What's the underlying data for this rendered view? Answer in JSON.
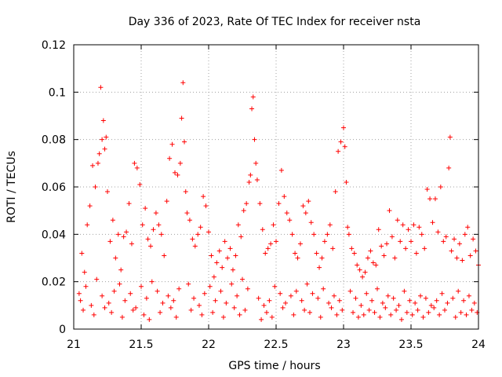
{
  "chart_data": {
    "type": "scatter",
    "title": "Day 336 of 2023, Rate Of TEC Index for receiver nsta",
    "xlabel": "GPS time / hours",
    "ylabel": "ROTI / TECUs",
    "xlim": [
      21,
      24
    ],
    "ylim": [
      0,
      0.12
    ],
    "x_ticks": [
      "21",
      "21.5",
      "22",
      "22.5",
      "23",
      "23.5",
      "24"
    ],
    "y_ticks": [
      "0",
      "0.02",
      "0.04",
      "0.06",
      "0.08",
      "0.1",
      "0.12"
    ],
    "grid": true,
    "marker": "+",
    "color": "#ff0000",
    "series": [
      {
        "name": "ROTI",
        "x": [
          21.04,
          21.06,
          21.08,
          21.1,
          21.12,
          21.14,
          21.16,
          21.18,
          21.19,
          21.2,
          21.21,
          21.22,
          21.23,
          21.24,
          21.25,
          21.27,
          21.29,
          21.31,
          21.33,
          21.35,
          21.37,
          21.39,
          21.41,
          21.43,
          21.45,
          21.47,
          21.49,
          21.51,
          21.53,
          21.55,
          21.57,
          21.59,
          21.61,
          21.63,
          21.65,
          21.67,
          21.69,
          21.71,
          21.73,
          21.75,
          21.77,
          21.79,
          21.8,
          21.81,
          21.82,
          21.83,
          21.84,
          21.86,
          21.88,
          21.9,
          21.92,
          21.94,
          21.96,
          21.98,
          22.0,
          22.02,
          22.04,
          22.06,
          22.08,
          22.1,
          22.12,
          22.14,
          22.16,
          22.18,
          22.2,
          22.22,
          22.24,
          22.26,
          22.28,
          22.3,
          22.31,
          22.32,
          22.33,
          22.34,
          22.35,
          22.36,
          22.38,
          22.4,
          22.42,
          22.44,
          22.46,
          22.48,
          22.5,
          22.52,
          22.54,
          22.56,
          22.58,
          22.6,
          22.62,
          22.64,
          22.66,
          22.68,
          22.7,
          22.72,
          22.74,
          22.76,
          22.78,
          22.8,
          22.82,
          22.84,
          22.86,
          22.88,
          22.9,
          22.92,
          22.94,
          22.96,
          22.98,
          23.0,
          23.01,
          23.02,
          23.03,
          23.04,
          23.06,
          23.08,
          23.1,
          23.12,
          23.14,
          23.16,
          23.18,
          23.2,
          23.22,
          23.24,
          23.26,
          23.28,
          23.3,
          23.32,
          23.34,
          23.36,
          23.38,
          23.4,
          23.42,
          23.44,
          23.46,
          23.48,
          23.5,
          23.52,
          23.54,
          23.56,
          23.58,
          23.6,
          23.62,
          23.64,
          23.66,
          23.68,
          23.7,
          23.72,
          23.74,
          23.76,
          23.78,
          23.79,
          23.8,
          23.82,
          23.84,
          23.86,
          23.88,
          23.9,
          23.92,
          23.94,
          23.96,
          23.98,
          24.0,
          21.05,
          21.09,
          21.13,
          21.17,
          21.21,
          21.26,
          21.3,
          21.34,
          21.38,
          21.42,
          21.46,
          21.5,
          21.54,
          21.58,
          21.62,
          21.66,
          21.7,
          21.74,
          21.78,
          21.85,
          21.89,
          21.93,
          21.97,
          22.01,
          22.05,
          22.09,
          22.13,
          22.17,
          22.21,
          22.25,
          22.29,
          22.37,
          22.41,
          22.45,
          22.49,
          22.53,
          22.57,
          22.61,
          22.65,
          22.69,
          22.73,
          22.77,
          22.81,
          22.85,
          22.89,
          22.93,
          22.97,
          23.05,
          23.09,
          23.13,
          23.17,
          23.21,
          23.25,
          23.29,
          23.33,
          23.37,
          23.41,
          23.45,
          23.49,
          23.53,
          23.57,
          23.61,
          23.65,
          23.69,
          23.73,
          23.77,
          23.81,
          23.85,
          23.89,
          23.93,
          23.97,
          21.07,
          21.15,
          21.23,
          21.28,
          21.36,
          21.44,
          21.52,
          21.56,
          21.64,
          21.72,
          21.76,
          21.87,
          21.95,
          22.03,
          22.11,
          22.19,
          22.23,
          22.27,
          22.39,
          22.43,
          22.47,
          22.55,
          22.63,
          22.71,
          22.75,
          22.83,
          22.91,
          22.95,
          22.99,
          23.07,
          23.11,
          23.15,
          23.19,
          23.23,
          23.27,
          23.31,
          23.35,
          23.39,
          23.43,
          23.47,
          23.51,
          23.55,
          23.59,
          23.63,
          23.67,
          23.71,
          23.75,
          23.83,
          23.87,
          23.91,
          23.95,
          23.99
        ],
        "y": [
          0.015,
          0.032,
          0.024,
          0.044,
          0.052,
          0.069,
          0.06,
          0.07,
          0.074,
          0.102,
          0.08,
          0.088,
          0.076,
          0.081,
          0.058,
          0.037,
          0.046,
          0.03,
          0.04,
          0.025,
          0.039,
          0.041,
          0.053,
          0.036,
          0.07,
          0.068,
          0.061,
          0.044,
          0.051,
          0.038,
          0.035,
          0.042,
          0.049,
          0.044,
          0.04,
          0.031,
          0.054,
          0.072,
          0.078,
          0.066,
          0.065,
          0.07,
          0.089,
          0.104,
          0.079,
          0.058,
          0.049,
          0.046,
          0.038,
          0.035,
          0.04,
          0.043,
          0.056,
          0.052,
          0.041,
          0.031,
          0.022,
          0.028,
          0.033,
          0.026,
          0.037,
          0.03,
          0.034,
          0.025,
          0.031,
          0.044,
          0.039,
          0.05,
          0.053,
          0.062,
          0.065,
          0.093,
          0.098,
          0.08,
          0.07,
          0.063,
          0.053,
          0.042,
          0.032,
          0.034,
          0.036,
          0.044,
          0.037,
          0.053,
          0.067,
          0.056,
          0.049,
          0.046,
          0.04,
          0.032,
          0.03,
          0.036,
          0.052,
          0.049,
          0.054,
          0.045,
          0.04,
          0.032,
          0.026,
          0.03,
          0.037,
          0.04,
          0.044,
          0.034,
          0.058,
          0.075,
          0.079,
          0.085,
          0.077,
          0.062,
          0.043,
          0.04,
          0.034,
          0.032,
          0.027,
          0.025,
          0.022,
          0.024,
          0.03,
          0.033,
          0.028,
          0.027,
          0.042,
          0.035,
          0.031,
          0.036,
          0.05,
          0.039,
          0.03,
          0.046,
          0.037,
          0.044,
          0.034,
          0.042,
          0.037,
          0.044,
          0.032,
          0.043,
          0.04,
          0.034,
          0.059,
          0.055,
          0.045,
          0.055,
          0.041,
          0.06,
          0.037,
          0.039,
          0.068,
          0.081,
          0.033,
          0.038,
          0.03,
          0.036,
          0.029,
          0.04,
          0.043,
          0.031,
          0.038,
          0.033,
          0.027,
          0.012,
          0.018,
          0.01,
          0.021,
          0.014,
          0.011,
          0.016,
          0.019,
          0.012,
          0.015,
          0.009,
          0.018,
          0.013,
          0.02,
          0.016,
          0.011,
          0.014,
          0.012,
          0.017,
          0.019,
          0.013,
          0.01,
          0.015,
          0.018,
          0.012,
          0.016,
          0.011,
          0.019,
          0.014,
          0.021,
          0.017,
          0.013,
          0.01,
          0.012,
          0.018,
          0.015,
          0.011,
          0.014,
          0.016,
          0.012,
          0.019,
          0.015,
          0.013,
          0.017,
          0.011,
          0.014,
          0.012,
          0.016,
          0.013,
          0.01,
          0.015,
          0.012,
          0.017,
          0.011,
          0.014,
          0.013,
          0.01,
          0.016,
          0.012,
          0.011,
          0.014,
          0.013,
          0.01,
          0.012,
          0.015,
          0.011,
          0.013,
          0.016,
          0.012,
          0.014,
          0.011,
          0.008,
          0.006,
          0.009,
          0.007,
          0.005,
          0.008,
          0.006,
          0.004,
          0.007,
          0.009,
          0.005,
          0.008,
          0.006,
          0.007,
          0.005,
          0.009,
          0.006,
          0.008,
          0.004,
          0.007,
          0.005,
          0.009,
          0.006,
          0.008,
          0.007,
          0.005,
          0.009,
          0.006,
          0.008,
          0.007,
          0.005,
          0.006,
          0.008,
          0.007,
          0.005,
          0.009,
          0.006,
          0.008,
          0.004,
          0.007,
          0.006,
          0.008,
          0.005,
          0.007,
          0.009,
          0.006,
          0.008,
          0.005,
          0.007,
          0.006,
          0.008,
          0.007
        ]
      }
    ]
  }
}
